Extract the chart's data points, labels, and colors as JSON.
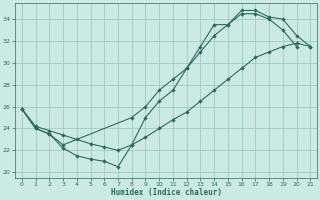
{
  "bg_color": "#cceae4",
  "grid_color": "#99c4bc",
  "line_color": "#2a6b5e",
  "xlabel": "Humidex (Indice chaleur)",
  "xlim": [
    -0.5,
    21.5
  ],
  "ylim": [
    19.5,
    35.5
  ],
  "xticks": [
    0,
    1,
    2,
    3,
    4,
    5,
    6,
    7,
    8,
    9,
    10,
    11,
    12,
    13,
    14,
    15,
    16,
    17,
    18,
    19,
    20,
    21
  ],
  "yticks": [
    20,
    22,
    24,
    26,
    28,
    30,
    32,
    34
  ],
  "curve1_x": [
    0,
    1,
    2,
    3,
    4,
    5,
    6,
    7,
    8,
    9,
    10,
    11,
    12,
    13,
    14,
    15,
    16,
    17,
    18,
    19,
    20
  ],
  "curve1_y": [
    25.8,
    24.0,
    23.5,
    22.2,
    21.5,
    21.2,
    21.0,
    20.5,
    22.5,
    25.0,
    26.5,
    27.5,
    29.5,
    31.5,
    33.5,
    33.5,
    34.5,
    34.5,
    34.0,
    33.0,
    31.5
  ],
  "curve2_x": [
    0,
    1,
    2,
    3,
    4,
    5,
    6,
    7,
    8,
    9,
    10,
    11,
    12,
    13,
    14,
    15,
    16,
    17,
    18,
    19,
    20,
    21
  ],
  "curve2_y": [
    25.8,
    24.2,
    23.8,
    23.4,
    23.0,
    22.6,
    22.3,
    22.0,
    22.5,
    23.2,
    24.0,
    24.8,
    25.5,
    26.5,
    27.5,
    28.5,
    29.5,
    30.5,
    31.0,
    31.5,
    31.8,
    31.5
  ],
  "curve3_x": [
    0,
    1,
    2,
    3,
    8,
    9,
    10,
    11,
    12,
    13,
    14,
    15,
    16,
    17,
    18,
    19,
    20,
    21
  ],
  "curve3_y": [
    25.8,
    24.0,
    23.5,
    22.5,
    25.0,
    26.0,
    27.5,
    28.5,
    29.5,
    31.0,
    32.5,
    33.5,
    34.8,
    34.8,
    34.2,
    34.0,
    32.5,
    31.5
  ]
}
